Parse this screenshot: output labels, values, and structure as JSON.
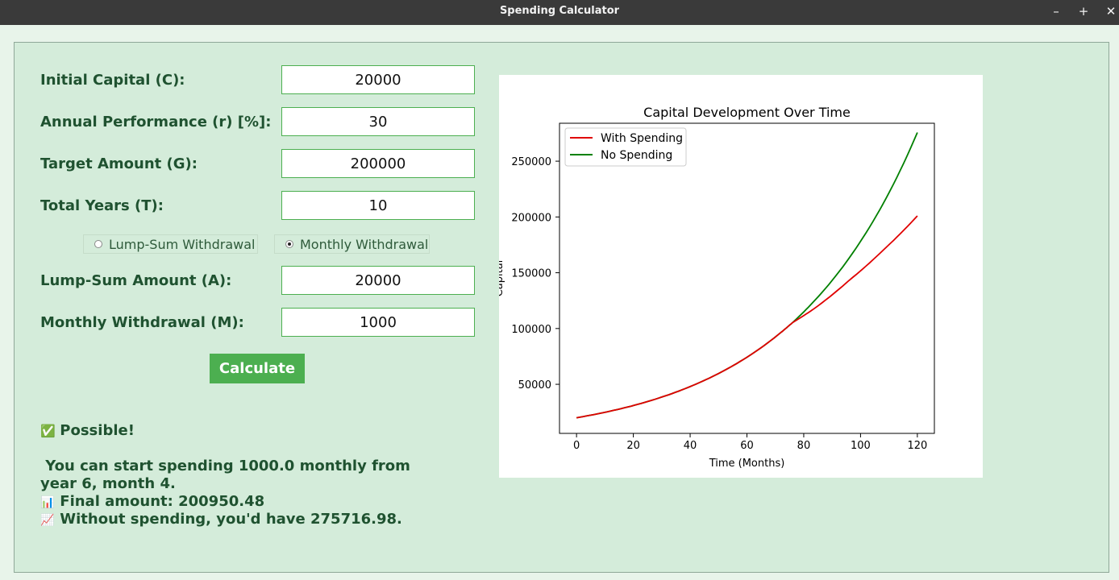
{
  "window": {
    "title": "Spending Calculator",
    "controls": {
      "minimize": "–",
      "maximize": "+",
      "close": "✕"
    }
  },
  "form": {
    "initial_capital": {
      "label": "Initial Capital (C):",
      "value": "20000"
    },
    "annual_performance": {
      "label": "Annual Performance (r) [%]:",
      "value": "30"
    },
    "target_amount": {
      "label": "Target Amount (G):",
      "value": "200000"
    },
    "total_years": {
      "label": "Total Years (T):",
      "value": "10"
    },
    "withdrawal_mode": {
      "options": [
        "Lump-Sum Withdrawal",
        "Monthly Withdrawal"
      ],
      "selected": "Monthly Withdrawal"
    },
    "lump_sum_amount": {
      "label": "Lump-Sum Amount (A):",
      "value": "20000"
    },
    "monthly_withdrawal": {
      "label": "Monthly Withdrawal (M):",
      "value": "1000"
    },
    "calculate_label": "Calculate"
  },
  "result": {
    "status_icon": "✅",
    "status": "Possible!",
    "message_line1": " You can start spending 1000.0 monthly from",
    "message_line2": "year 6, month 4.",
    "final_icon": "📊",
    "final_amount": "Final amount: 200950.48",
    "without_icon": "📈",
    "without_spending": "Without spending, you'd have 275716.98."
  },
  "colors": {
    "accent": "#4caf50",
    "panel": "#d4ecda",
    "label": "#1f5230",
    "with_spending": "#e00000",
    "no_spending": "#008000"
  },
  "chart_data": {
    "type": "line",
    "title": "Capital Development Over Time",
    "xlabel": "Time (Months)",
    "ylabel": "Capital",
    "xlim": [
      -6,
      126
    ],
    "ylim": [
      6000,
      284000
    ],
    "xticks": [
      0,
      20,
      40,
      60,
      80,
      100,
      120
    ],
    "yticks": [
      50000,
      100000,
      150000,
      200000,
      250000
    ],
    "legend": "top-left",
    "grid": false,
    "series": [
      {
        "name": "With Spending",
        "color": "#e00000",
        "x": [
          0,
          12,
          24,
          36,
          48,
          60,
          72,
          76,
          84,
          96,
          108,
          120
        ],
        "y": [
          20000,
          26000,
          33800,
          43940,
          57120,
          74260,
          96530,
          105200,
          118400,
          143200,
          170300,
          200950
        ]
      },
      {
        "name": "No Spending",
        "color": "#008000",
        "x": [
          0,
          12,
          24,
          36,
          48,
          60,
          72,
          76,
          84,
          96,
          108,
          120
        ],
        "y": [
          20000,
          26000,
          33800,
          43940,
          57120,
          74260,
          96530,
          105200,
          125500,
          163200,
          212100,
          275717
        ]
      }
    ]
  }
}
